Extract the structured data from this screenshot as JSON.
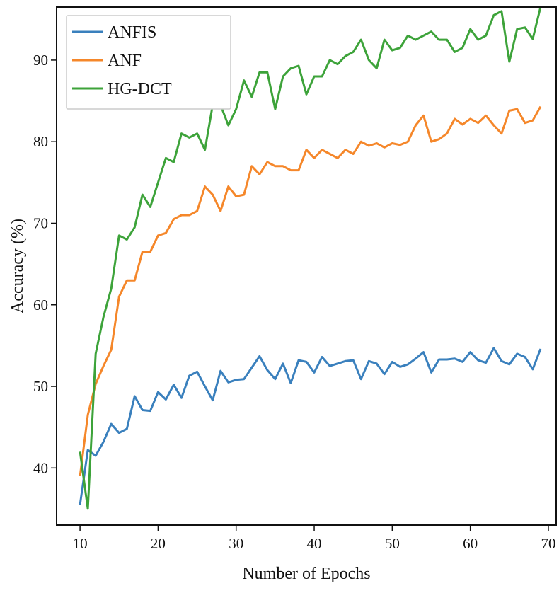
{
  "chart_data": {
    "type": "line",
    "title": "",
    "xlabel": "Number of Epochs",
    "ylabel": "Accuracy (%)",
    "xlim": [
      7,
      71
    ],
    "ylim": [
      33,
      96.5
    ],
    "xticks": [
      10,
      20,
      30,
      40,
      50,
      60,
      70
    ],
    "xtick_labels": [
      "10",
      "20",
      "30",
      "40",
      "50",
      "60",
      "70"
    ],
    "yticks": [
      40,
      50,
      60,
      70,
      80,
      90
    ],
    "ytick_labels": [
      "40",
      "50",
      "60",
      "70",
      "80",
      "90"
    ],
    "grid": false,
    "legend": {
      "position": "top-left"
    },
    "x": [
      10,
      11,
      12,
      13,
      14,
      15,
      16,
      17,
      18,
      19,
      20,
      21,
      22,
      23,
      24,
      25,
      26,
      27,
      28,
      29,
      30,
      31,
      32,
      33,
      34,
      35,
      36,
      37,
      38,
      39,
      40,
      41,
      42,
      43,
      44,
      45,
      46,
      47,
      48,
      49,
      50,
      51,
      52,
      53,
      54,
      55,
      56,
      57,
      58,
      59,
      60,
      61,
      62,
      63,
      64,
      65,
      66,
      67,
      68,
      69
    ],
    "series": [
      {
        "name": "ANFIS",
        "color": "#3a80bd",
        "values": [
          35.5,
          42.2,
          41.5,
          43.2,
          45.4,
          44.3,
          44.8,
          48.8,
          47.1,
          47.0,
          49.3,
          48.4,
          50.2,
          48.6,
          51.3,
          51.8,
          50.0,
          48.3,
          51.9,
          50.5,
          50.8,
          50.9,
          52.3,
          53.7,
          52.0,
          50.9,
          52.8,
          50.4,
          53.2,
          53.0,
          51.7,
          53.6,
          52.5,
          52.8,
          53.1,
          53.2,
          50.9,
          53.1,
          52.8,
          51.5,
          53.0,
          52.4,
          52.7,
          53.4,
          54.2,
          51.7,
          53.3,
          53.3,
          53.4,
          53.0,
          54.2,
          53.2,
          52.9,
          54.7,
          53.1,
          52.7,
          54.0,
          53.6,
          52.1,
          54.6
        ]
      },
      {
        "name": "ANF",
        "color": "#f5872a",
        "values": [
          39.0,
          46.5,
          50.3,
          52.5,
          54.5,
          61.0,
          63.0,
          63.0,
          66.5,
          66.5,
          68.5,
          68.8,
          70.5,
          71.0,
          71.0,
          71.5,
          74.5,
          73.5,
          71.5,
          74.5,
          73.3,
          73.5,
          77.0,
          76.0,
          77.5,
          77.0,
          77.0,
          76.5,
          76.5,
          79.0,
          78.0,
          79.0,
          78.5,
          78.0,
          79.0,
          78.5,
          80.0,
          79.5,
          79.8,
          79.3,
          79.8,
          79.6,
          80.0,
          82.0,
          83.2,
          80.0,
          80.3,
          81.0,
          82.8,
          82.1,
          82.8,
          82.3,
          83.2,
          82.0,
          81.0,
          83.8,
          84.0,
          82.3,
          82.6,
          84.3
        ]
      },
      {
        "name": "HG-DCT",
        "color": "#3da33a",
        "values": [
          42.0,
          35.0,
          54.0,
          58.5,
          62.0,
          68.5,
          68.0,
          69.5,
          73.5,
          72.0,
          75.0,
          78.0,
          77.5,
          81.0,
          80.5,
          81.0,
          79.0,
          84.5,
          84.5,
          82.0,
          84.0,
          87.5,
          85.5,
          88.5,
          88.5,
          84.0,
          88.0,
          89.0,
          89.3,
          85.8,
          88.0,
          88.0,
          90.0,
          89.5,
          90.5,
          91.0,
          92.5,
          90.0,
          89.0,
          92.5,
          91.2,
          91.5,
          93.0,
          92.5,
          93.0,
          93.5,
          92.5,
          92.5,
          91.0,
          91.5,
          93.8,
          92.5,
          93.0,
          95.5,
          96.0,
          89.8,
          93.8,
          94.0,
          92.6,
          96.5
        ]
      }
    ]
  }
}
